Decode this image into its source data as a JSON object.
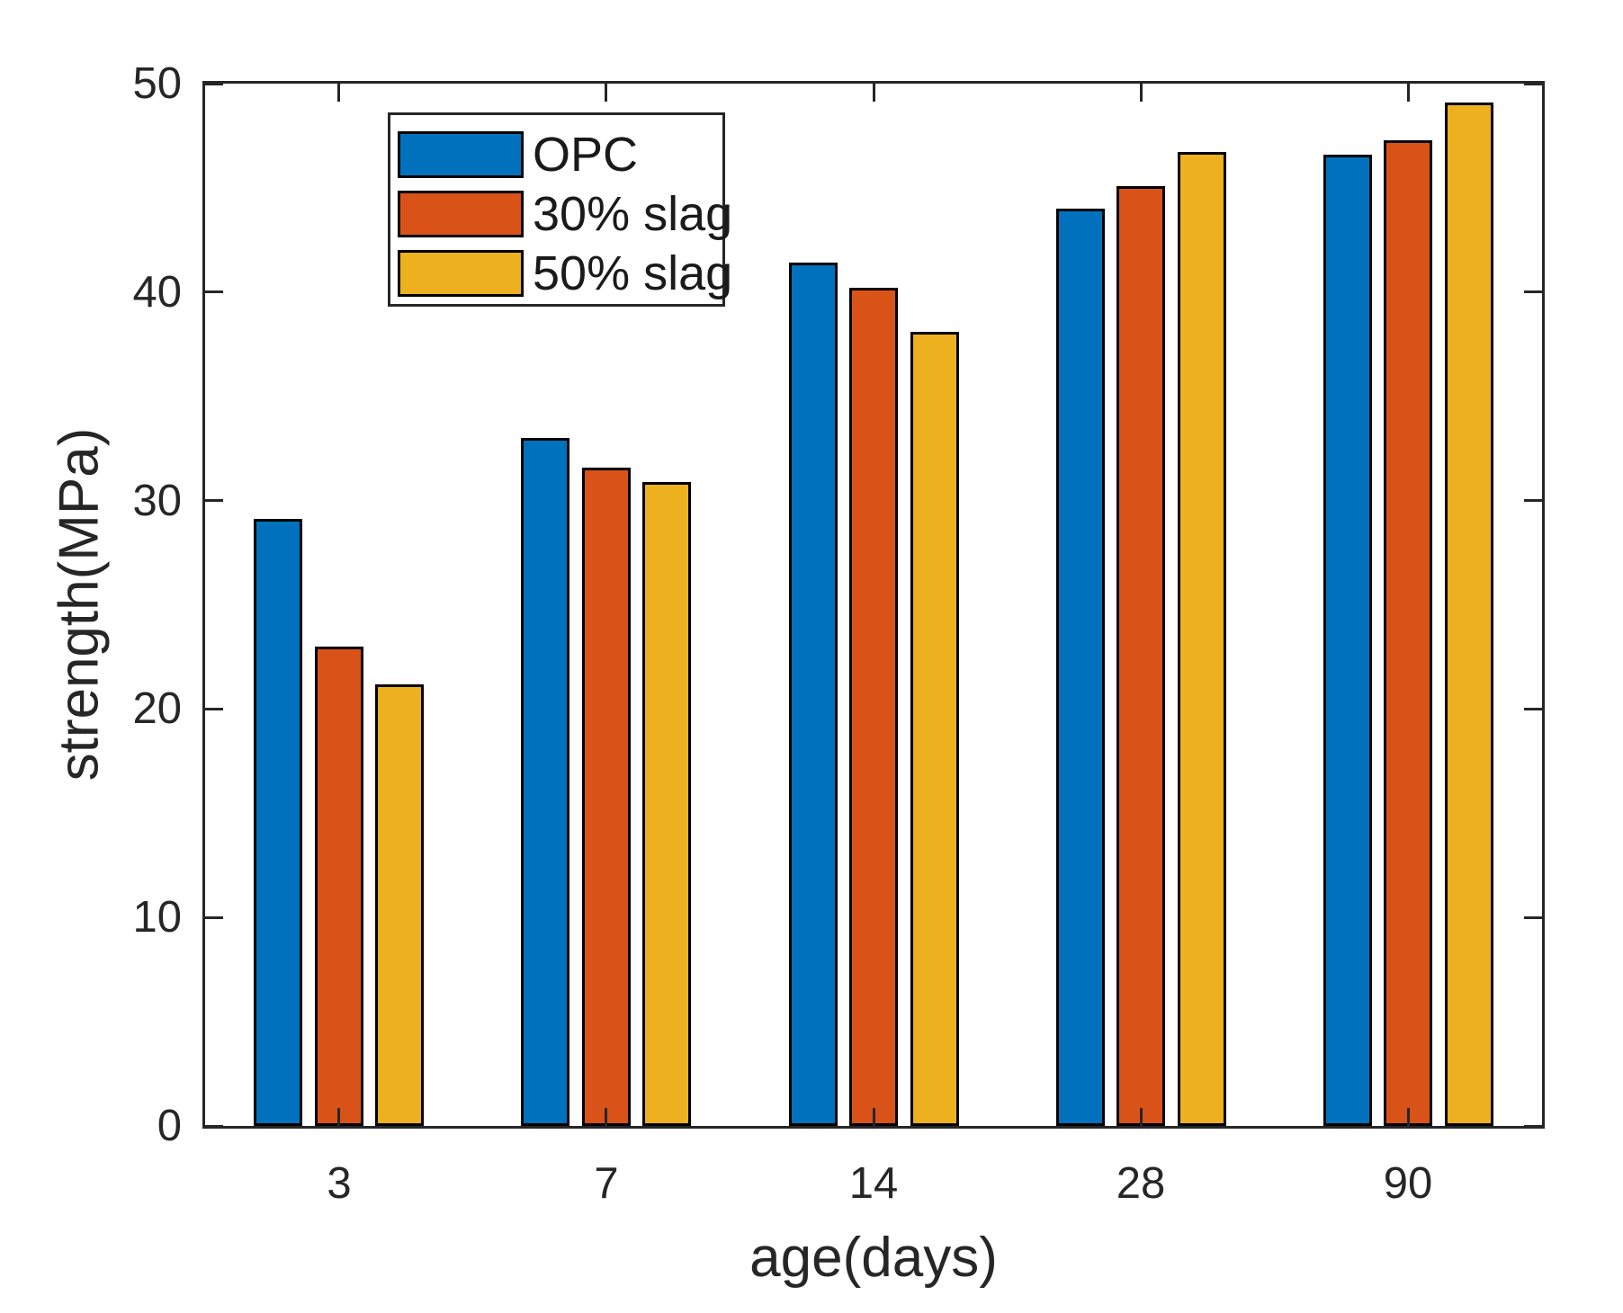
{
  "chart_data": {
    "type": "bar",
    "title": "",
    "xlabel": "age(days)",
    "ylabel": "strength(MPa)",
    "categories": [
      "3",
      "7",
      "14",
      "28",
      "90"
    ],
    "series": [
      {
        "name": "OPC",
        "color": "#0072BD",
        "values": [
          29.1,
          33.0,
          41.4,
          44.0,
          46.6
        ]
      },
      {
        "name": "30% slag",
        "color": "#D95319",
        "values": [
          23.0,
          31.6,
          40.2,
          45.1,
          47.3
        ]
      },
      {
        "name": "50% slag",
        "color": "#EDB120",
        "values": [
          21.2,
          30.9,
          38.1,
          46.7,
          49.1
        ]
      }
    ],
    "ylim": [
      0,
      50
    ],
    "yticks": [
      0,
      10,
      20,
      30,
      40,
      50
    ],
    "grid": false,
    "legend_position": "upper-left-inside",
    "bar_edge_color": "#000000",
    "axis_color": "#262626",
    "background_color": "#FFFFFF"
  }
}
